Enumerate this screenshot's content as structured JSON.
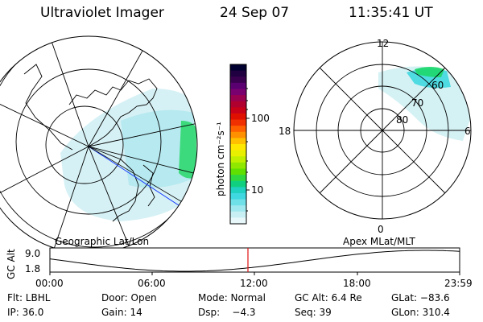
{
  "header": {
    "title": "Ultraviolet Imager",
    "date": "24 Sep 07",
    "time": "11:35:41 UT"
  },
  "left_panel": {
    "label": "Geographic Lat/Lon"
  },
  "right_panel": {
    "label": "Apex MLat/MLT",
    "mlt_labels": {
      "top": "12",
      "bottom": "0",
      "left": "18",
      "right": "6"
    },
    "lat_labels": [
      "60",
      "70",
      "80"
    ]
  },
  "colorbar": {
    "unit_label": "photon cm⁻²s⁻¹",
    "ticks": [
      "100",
      "10"
    ],
    "colors": [
      "#000030",
      "#200040",
      "#3a0050",
      "#5a0070",
      "#7a0070",
      "#9a0050",
      "#b00030",
      "#c80018",
      "#e01000",
      "#f03000",
      "#ff6000",
      "#ff9000",
      "#ffc000",
      "#ffe800",
      "#e8f000",
      "#c0f000",
      "#90e800",
      "#60e000",
      "#30d840",
      "#10d080",
      "#20d0c0",
      "#40d8e0",
      "#70e0e8",
      "#a0e8f0",
      "#c8f0f4",
      "#e8f8fa"
    ]
  },
  "alt_plot": {
    "ylabel": "GC Alt",
    "y_max_label": "9.0",
    "y_min_label": "1.8",
    "x_labels": [
      "00:00",
      "06:00",
      "12:00",
      "18:00",
      "23:59"
    ],
    "marker_time_hours": 11.6
  },
  "info": {
    "flt": "Flt: LBHL",
    "door": "Door: Open",
    "mode": "Mode: Normal",
    "gc_alt": "GC Alt: 6.4 Re",
    "glat": "GLat: −83.6",
    "ip": "IP: 36.0",
    "gain": "Gain: 14",
    "dsp": "Dsp:    −4.3",
    "seq": "Seq: 39",
    "glon": "GLon: 310.4"
  }
}
